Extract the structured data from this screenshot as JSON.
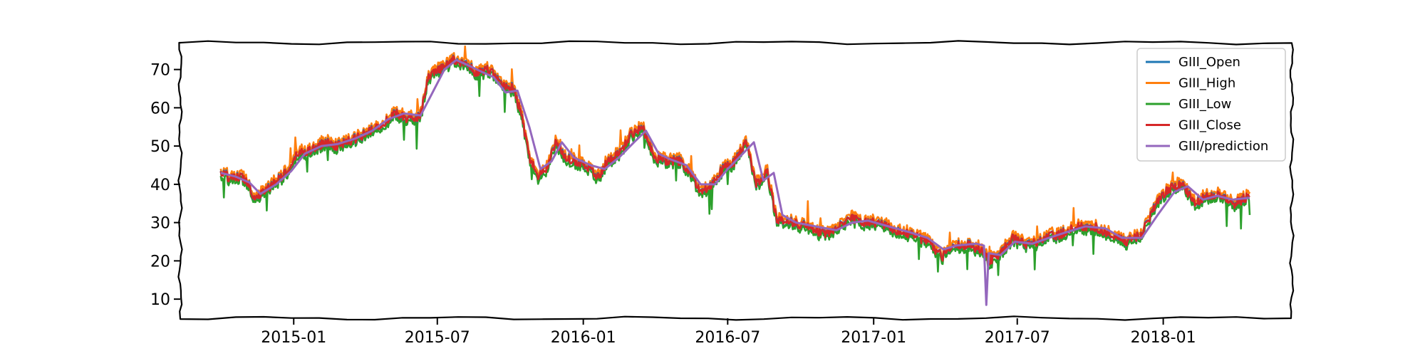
{
  "chart_data": {
    "type": "line",
    "title": "",
    "xlabel": "",
    "ylabel": "",
    "xlim": [
      "2014-08-11",
      "2018-06-12"
    ],
    "ylim": [
      5,
      77
    ],
    "grid": false,
    "legend_position": "top-right",
    "x_ticks": [
      "2015-01",
      "2015-07",
      "2016-01",
      "2016-07",
      "2017-01",
      "2017-07",
      "2018-01"
    ],
    "y_ticks": [
      10,
      20,
      30,
      40,
      50,
      60,
      70
    ],
    "series": [
      {
        "name": "GIII_Open",
        "color": "#1f77b4"
      },
      {
        "name": "GIII_High",
        "color": "#ff7f0e"
      },
      {
        "name": "GIII_Low",
        "color": "#2ca02c"
      },
      {
        "name": "GIII_Close",
        "color": "#d62728"
      },
      {
        "name": "GIII/prediction",
        "color": "#9467bd"
      }
    ],
    "close_points": [
      [
        "2014-10-01",
        43
      ],
      [
        "2014-10-15",
        41.5
      ],
      [
        "2014-10-28",
        42
      ],
      [
        "2014-11-06",
        40
      ],
      [
        "2014-11-12",
        36.5
      ],
      [
        "2014-11-25",
        38
      ],
      [
        "2014-12-10",
        41
      ],
      [
        "2014-12-29",
        44
      ],
      [
        "2015-01-05",
        48
      ],
      [
        "2015-01-25",
        49
      ],
      [
        "2015-02-10",
        51
      ],
      [
        "2015-02-25",
        50
      ],
      [
        "2015-03-15",
        51.5
      ],
      [
        "2015-04-01",
        53
      ],
      [
        "2015-04-20",
        55.5
      ],
      [
        "2015-05-10",
        58.5
      ],
      [
        "2015-05-25",
        57
      ],
      [
        "2015-06-10",
        58
      ],
      [
        "2015-06-20",
        68
      ],
      [
        "2015-07-05",
        70
      ],
      [
        "2015-07-20",
        72.5
      ],
      [
        "2015-08-05",
        71.5
      ],
      [
        "2015-08-20",
        69
      ],
      [
        "2015-09-05",
        70
      ],
      [
        "2015-09-20",
        66
      ],
      [
        "2015-10-05",
        65
      ],
      [
        "2015-10-15",
        58
      ],
      [
        "2015-10-25",
        47
      ],
      [
        "2015-11-05",
        42
      ],
      [
        "2015-11-15",
        44
      ],
      [
        "2015-11-28",
        51
      ],
      [
        "2015-12-10",
        47
      ],
      [
        "2016-01-05",
        45
      ],
      [
        "2016-01-20",
        42
      ],
      [
        "2016-02-01",
        46
      ],
      [
        "2016-02-15",
        48
      ],
      [
        "2016-03-01",
        53
      ],
      [
        "2016-03-15",
        55
      ],
      [
        "2016-04-01",
        47
      ],
      [
        "2016-04-15",
        46
      ],
      [
        "2016-05-01",
        46
      ],
      [
        "2016-05-15",
        43
      ],
      [
        "2016-05-28",
        38
      ],
      [
        "2016-06-10",
        40
      ],
      [
        "2016-06-25",
        44
      ],
      [
        "2016-07-10",
        46
      ],
      [
        "2016-07-25",
        51
      ],
      [
        "2016-08-05",
        40
      ],
      [
        "2016-08-20",
        43
      ],
      [
        "2016-09-01",
        31
      ],
      [
        "2016-09-20",
        30
      ],
      [
        "2016-10-10",
        29
      ],
      [
        "2016-11-01",
        27
      ],
      [
        "2016-11-20",
        29
      ],
      [
        "2016-12-05",
        31
      ],
      [
        "2016-12-20",
        30
      ],
      [
        "2017-01-05",
        30
      ],
      [
        "2017-01-25",
        28
      ],
      [
        "2017-02-15",
        27
      ],
      [
        "2017-03-10",
        25
      ],
      [
        "2017-03-28",
        21
      ],
      [
        "2017-04-10",
        24
      ],
      [
        "2017-05-01",
        24
      ],
      [
        "2017-05-17",
        23
      ],
      [
        "2017-05-26",
        20
      ],
      [
        "2017-06-10",
        22
      ],
      [
        "2017-06-25",
        26
      ],
      [
        "2017-07-15",
        24
      ],
      [
        "2017-08-05",
        26
      ],
      [
        "2017-08-25",
        27
      ],
      [
        "2017-09-15",
        29
      ],
      [
        "2017-10-05",
        29
      ],
      [
        "2017-10-25",
        27
      ],
      [
        "2017-11-15",
        25
      ],
      [
        "2017-12-05",
        27
      ],
      [
        "2017-12-25",
        36
      ],
      [
        "2018-01-10",
        39
      ],
      [
        "2018-01-25",
        40
      ],
      [
        "2018-02-10",
        35
      ],
      [
        "2018-02-25",
        37
      ],
      [
        "2018-03-15",
        37
      ],
      [
        "2018-04-01",
        35
      ],
      [
        "2018-04-20",
        37
      ]
    ],
    "prediction_points": [
      [
        "2014-10-01",
        43
      ],
      [
        "2014-10-20",
        42
      ],
      [
        "2014-11-06",
        40.5
      ],
      [
        "2014-11-20",
        37.5
      ],
      [
        "2014-12-10",
        40
      ],
      [
        "2014-12-29",
        43.5
      ],
      [
        "2015-01-15",
        48
      ],
      [
        "2015-02-05",
        50
      ],
      [
        "2015-02-25",
        50.5
      ],
      [
        "2015-03-20",
        52
      ],
      [
        "2015-04-10",
        54
      ],
      [
        "2015-04-30",
        57
      ],
      [
        "2015-05-20",
        58.5
      ],
      [
        "2015-06-10",
        58
      ],
      [
        "2015-06-25",
        64
      ],
      [
        "2015-07-10",
        70
      ],
      [
        "2015-07-25",
        72.5
      ],
      [
        "2015-08-10",
        71
      ],
      [
        "2015-08-25",
        69.5
      ],
      [
        "2015-09-10",
        68
      ],
      [
        "2015-09-25",
        64
      ],
      [
        "2015-10-10",
        64.5
      ],
      [
        "2015-10-25",
        55
      ],
      [
        "2015-11-08",
        44
      ],
      [
        "2015-11-22",
        46
      ],
      [
        "2015-12-05",
        51
      ],
      [
        "2015-12-20",
        47
      ],
      [
        "2016-01-10",
        45
      ],
      [
        "2016-01-28",
        44
      ],
      [
        "2016-02-15",
        47
      ],
      [
        "2016-03-05",
        51
      ],
      [
        "2016-03-20",
        54
      ],
      [
        "2016-04-05",
        48
      ],
      [
        "2016-04-20",
        46.5
      ],
      [
        "2016-05-10",
        45
      ],
      [
        "2016-05-28",
        40
      ],
      [
        "2016-06-15",
        40
      ],
      [
        "2016-07-01",
        44
      ],
      [
        "2016-07-20",
        48
      ],
      [
        "2016-08-03",
        51
      ],
      [
        "2016-08-15",
        41
      ],
      [
        "2016-08-28",
        43
      ],
      [
        "2016-09-08",
        32
      ],
      [
        "2016-09-25",
        30
      ],
      [
        "2016-10-20",
        29
      ],
      [
        "2016-11-15",
        28
      ],
      [
        "2016-12-05",
        30
      ],
      [
        "2016-12-25",
        30.5
      ],
      [
        "2017-01-20",
        29
      ],
      [
        "2017-02-15",
        27.5
      ],
      [
        "2017-03-10",
        26
      ],
      [
        "2017-03-30",
        23
      ],
      [
        "2017-04-15",
        24
      ],
      [
        "2017-05-10",
        24.5
      ],
      [
        "2017-05-20",
        24
      ],
      [
        "2017-05-23",
        8.5
      ],
      [
        "2017-05-26",
        22
      ],
      [
        "2017-06-10",
        21.5
      ],
      [
        "2017-06-28",
        25
      ],
      [
        "2017-07-20",
        24.5
      ],
      [
        "2017-08-10",
        26
      ],
      [
        "2017-09-01",
        27.5
      ],
      [
        "2017-09-25",
        29
      ],
      [
        "2017-10-20",
        28.5
      ],
      [
        "2017-11-10",
        26
      ],
      [
        "2017-12-05",
        26
      ],
      [
        "2017-12-25",
        32
      ],
      [
        "2018-01-15",
        38
      ],
      [
        "2018-02-01",
        39.5
      ],
      [
        "2018-02-20",
        36
      ],
      [
        "2018-03-10",
        37
      ],
      [
        "2018-03-30",
        36
      ],
      [
        "2018-04-20",
        36.5
      ]
    ]
  }
}
